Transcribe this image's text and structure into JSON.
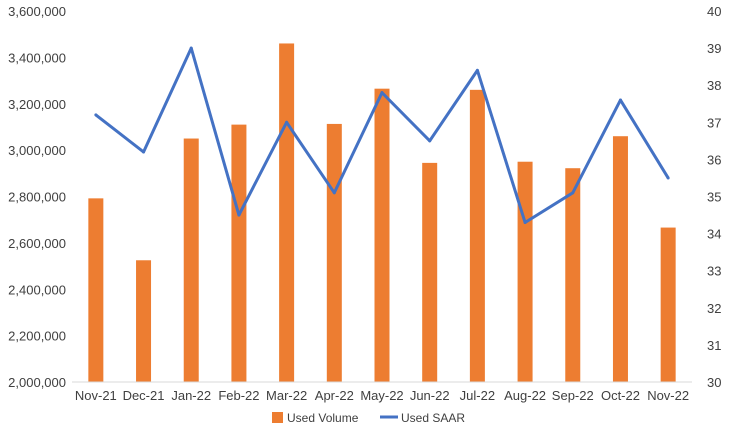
{
  "chart_data": {
    "type": "bar",
    "categories": [
      "Nov-21",
      "Dec-21",
      "Jan-22",
      "Feb-22",
      "Mar-22",
      "Apr-22",
      "May-22",
      "Jun-22",
      "Jul-22",
      "Aug-22",
      "Sep-22",
      "Oct-22",
      "Nov-22"
    ],
    "series": [
      {
        "name": "Used Volume",
        "type": "bar",
        "axis": "left",
        "color": "#ED7D31",
        "values": [
          2792000,
          2525000,
          3050000,
          3110000,
          3460000,
          3113000,
          3265000,
          2945000,
          3260000,
          2950000,
          2922000,
          3060000,
          2666000
        ]
      },
      {
        "name": "Used SAAR",
        "type": "line",
        "axis": "right",
        "color": "#4472C4",
        "values": [
          37.2,
          36.2,
          39.0,
          34.5,
          37.0,
          35.1,
          37.8,
          36.5,
          38.4,
          34.3,
          35.1,
          37.6,
          35.5
        ]
      }
    ],
    "y_left": {
      "lim": [
        2000000,
        3600000
      ],
      "ticks": [
        "2,000,000",
        "2,200,000",
        "2,400,000",
        "2,600,000",
        "2,800,000",
        "3,000,000",
        "3,200,000",
        "3,400,000",
        "3,600,000"
      ]
    },
    "y_right": {
      "lim": [
        30,
        40
      ],
      "ticks": [
        "30",
        "31",
        "32",
        "33",
        "34",
        "35",
        "36",
        "37",
        "38",
        "39",
        "40"
      ]
    },
    "legend": [
      "Used Volume",
      "Used SAAR"
    ],
    "legend_position": "bottom",
    "grid": false
  }
}
